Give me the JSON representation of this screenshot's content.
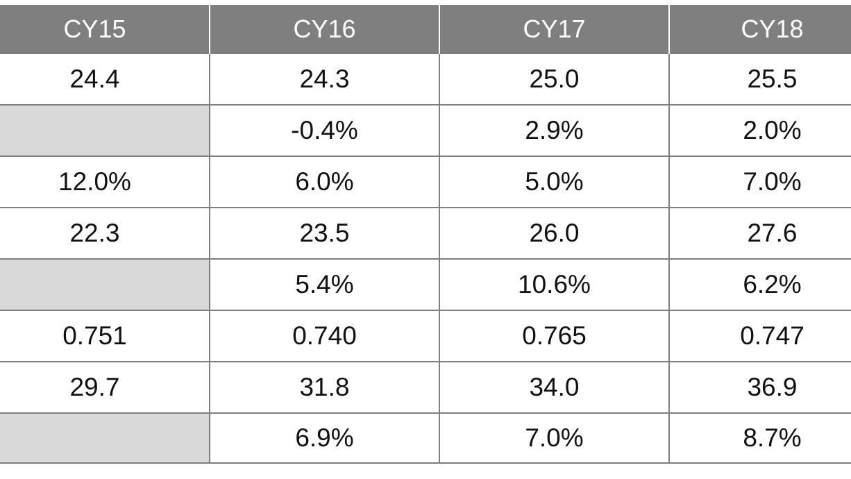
{
  "table": {
    "headers": [
      "CY15",
      "CY16",
      "CY17",
      "CY18"
    ],
    "rows": [
      [
        "24.4",
        "24.3",
        "25.0",
        "25.5"
      ],
      [
        "",
        "-0.4%",
        "2.9%",
        "2.0%"
      ],
      [
        "12.0%",
        "6.0%",
        "5.0%",
        "7.0%"
      ],
      [
        "22.3",
        "23.5",
        "26.0",
        "27.6"
      ],
      [
        "",
        "5.4%",
        "10.6%",
        "6.2%"
      ],
      [
        "0.751",
        "0.740",
        "0.765",
        "0.747"
      ],
      [
        "29.7",
        "31.8",
        "34.0",
        "36.9"
      ],
      [
        "",
        "6.9%",
        "7.0%",
        "8.7%"
      ]
    ]
  },
  "colors": {
    "header_bg": "#7f7f7f",
    "header_text": "#ffffff",
    "blank_cell_bg": "#d9d9d9",
    "grid_line": "#7f7f7f"
  }
}
